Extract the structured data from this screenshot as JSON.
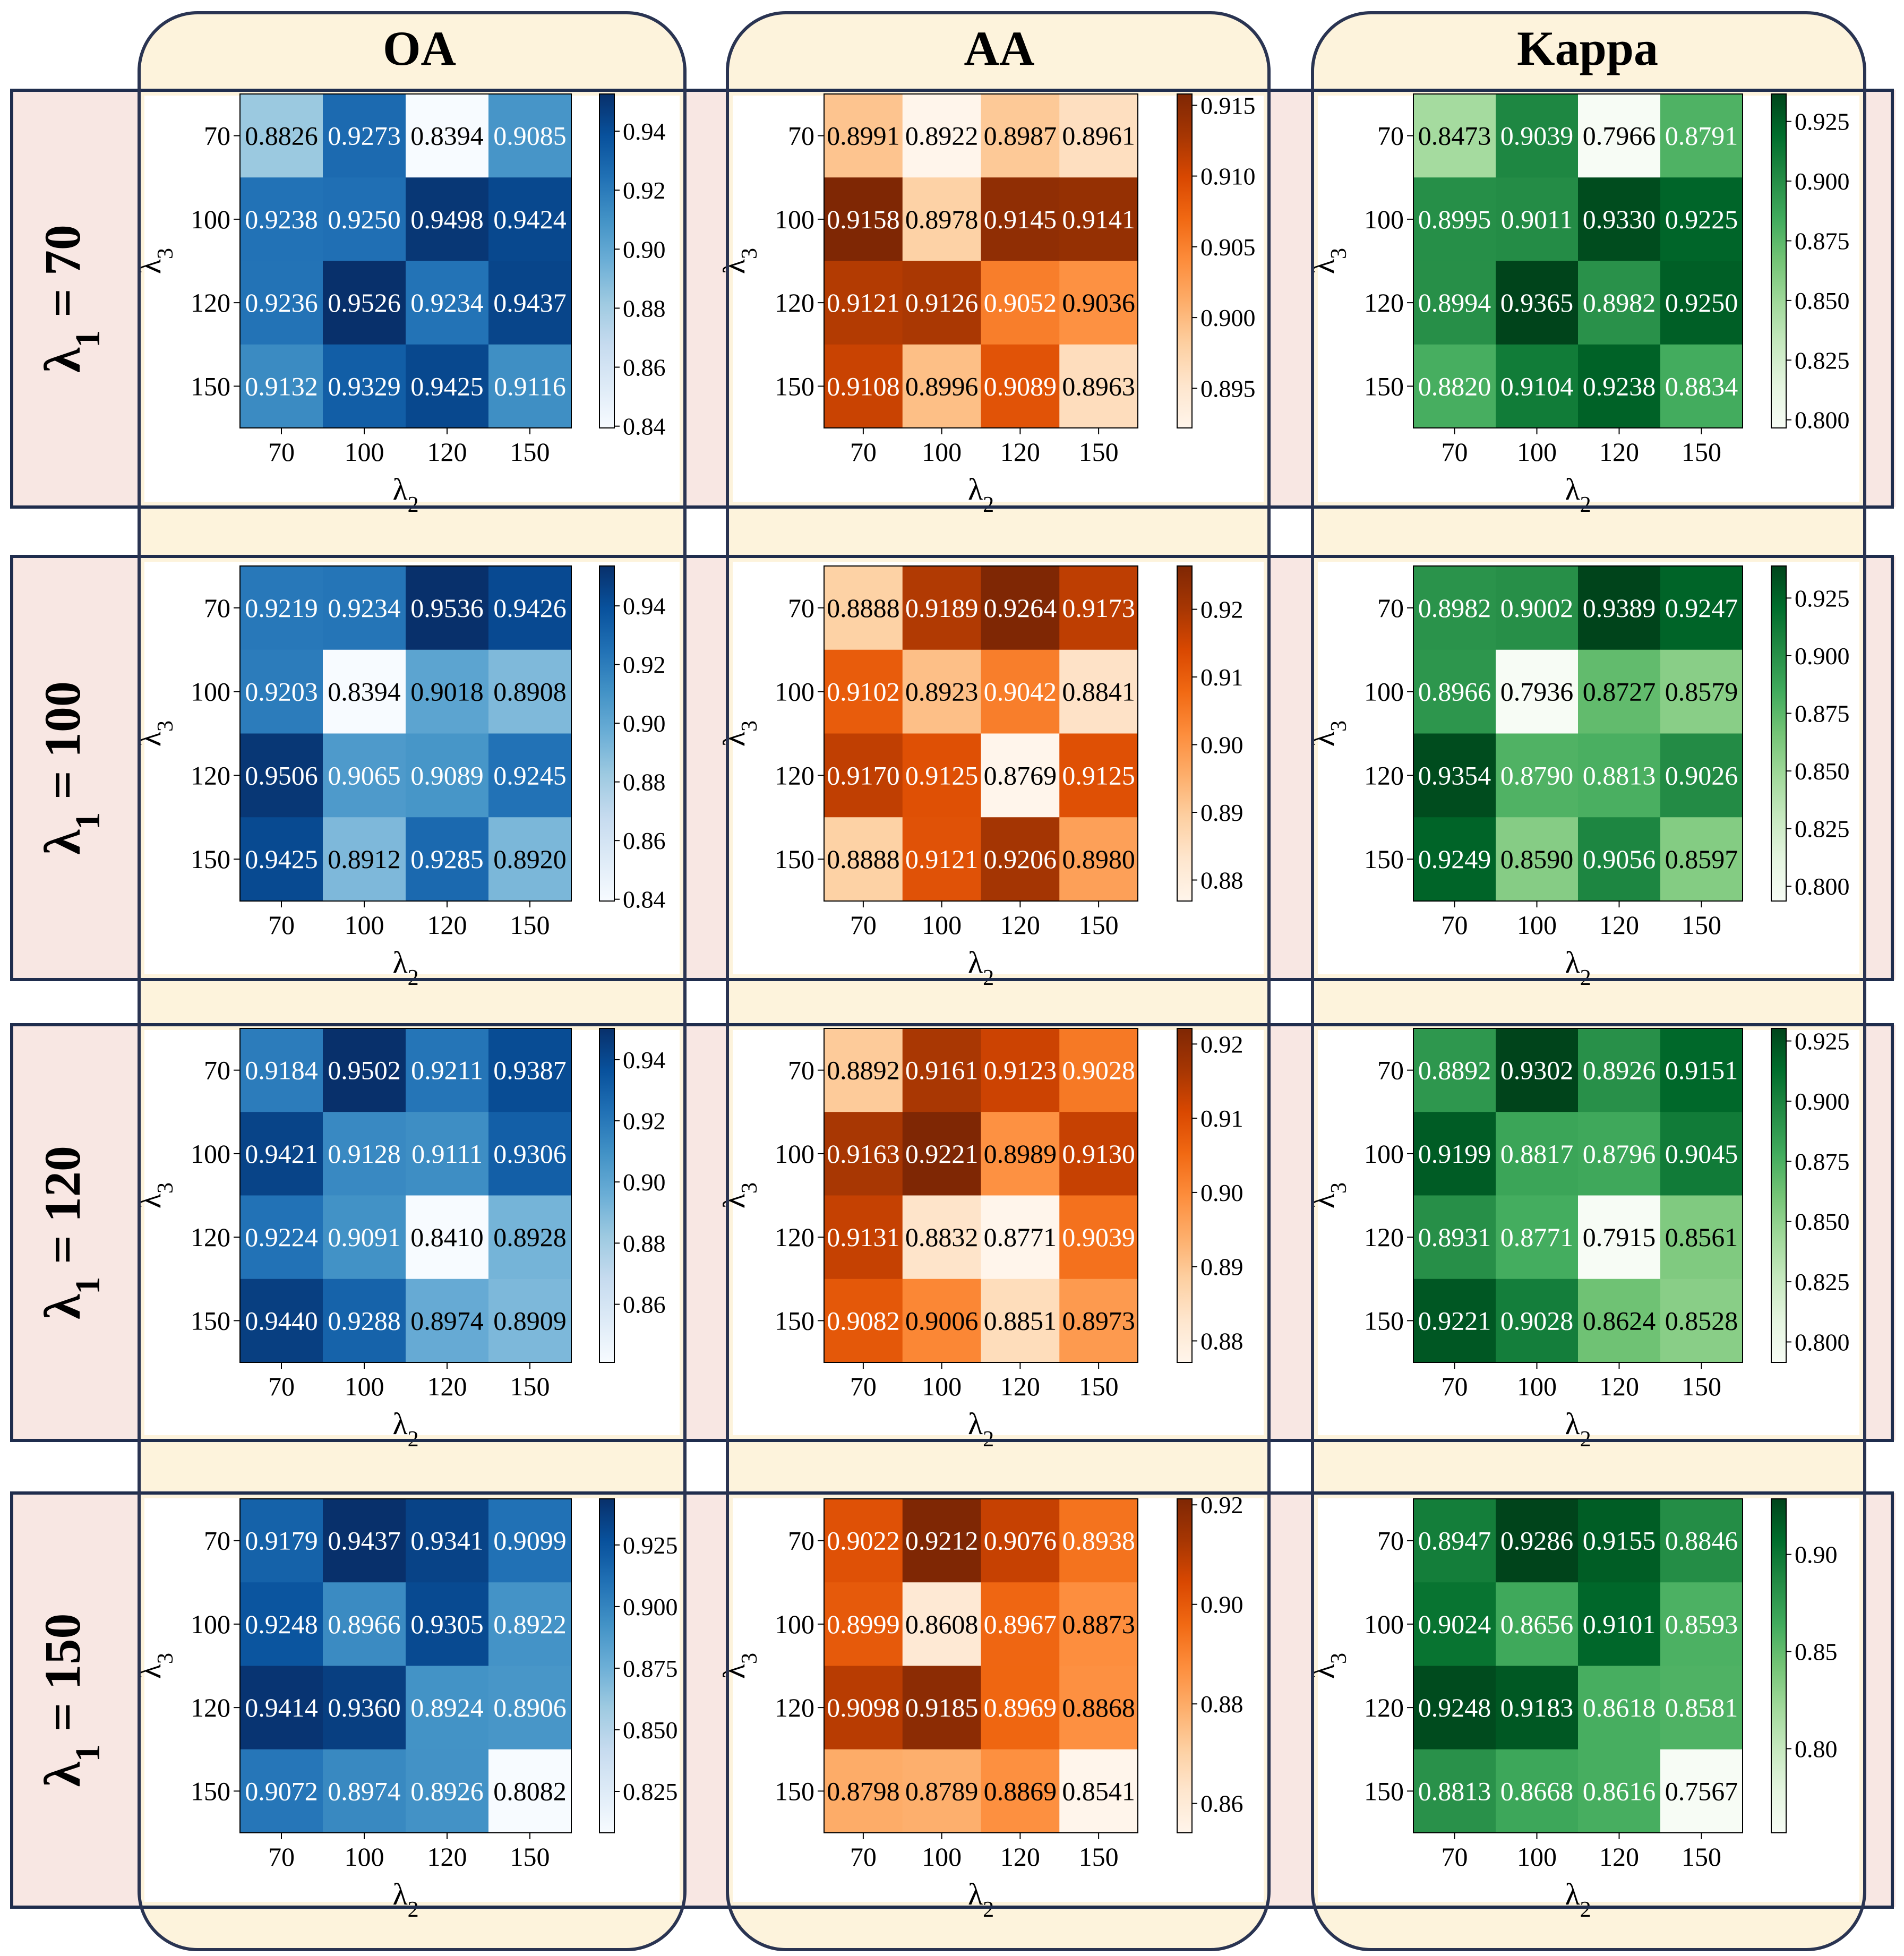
{
  "columns": [
    "OA",
    "AA",
    "Kappa"
  ],
  "rows": [
    "λ1 = 70",
    "λ1 = 100",
    "λ1 = 120",
    "λ1 = 150"
  ],
  "row_lambda_values": [
    "70",
    "100",
    "120",
    "150"
  ],
  "lambda_symbol": "λ",
  "row_label_sub": "1",
  "row_label_eq": " = ",
  "x_axis_label": "λ2",
  "y_axis_label": "λ3",
  "colormaps": {
    "OA": {
      "name": "Blues",
      "low": "#f7fbff",
      "high": "#08306b"
    },
    "AA": {
      "name": "Oranges",
      "low": "#fff5eb",
      "high": "#7f2704"
    },
    "Kappa": {
      "name": "Greens",
      "low": "#f7fcf5",
      "high": "#00441b"
    }
  },
  "chart_data": [
    {
      "type": "heatmap",
      "metric": "OA",
      "lambda1": 70,
      "xlabel": "λ2",
      "ylabel": "λ3",
      "x_ticks": [
        "70",
        "100",
        "120",
        "150"
      ],
      "y_ticks": [
        "70",
        "100",
        "120",
        "150"
      ],
      "values": [
        [
          0.8826,
          0.9273,
          0.8394,
          0.9085
        ],
        [
          0.9238,
          0.925,
          0.9498,
          0.9424
        ],
        [
          0.9236,
          0.9526,
          0.9234,
          0.9437
        ],
        [
          0.9132,
          0.9329,
          0.9425,
          0.9116
        ]
      ],
      "colorbar_ticks": [
        "0.84",
        "0.86",
        "0.88",
        "0.90",
        "0.92",
        "0.94"
      ],
      "colorbar_range": [
        0.8394,
        0.9526
      ]
    },
    {
      "type": "heatmap",
      "metric": "AA",
      "lambda1": 70,
      "xlabel": "λ2",
      "ylabel": "λ3",
      "x_ticks": [
        "70",
        "100",
        "120",
        "150"
      ],
      "y_ticks": [
        "70",
        "100",
        "120",
        "150"
      ],
      "values": [
        [
          0.8991,
          0.8922,
          0.8987,
          0.8961
        ],
        [
          0.9158,
          0.8978,
          0.9145,
          0.9141
        ],
        [
          0.9121,
          0.9126,
          0.9052,
          0.9036
        ],
        [
          0.9108,
          0.8996,
          0.9089,
          0.8963
        ]
      ],
      "colorbar_ticks": [
        "0.895",
        "0.900",
        "0.905",
        "0.910",
        "0.915"
      ],
      "colorbar_range": [
        0.8922,
        0.9158
      ]
    },
    {
      "type": "heatmap",
      "metric": "Kappa",
      "lambda1": 70,
      "xlabel": "λ2",
      "ylabel": "λ3",
      "x_ticks": [
        "70",
        "100",
        "120",
        "150"
      ],
      "y_ticks": [
        "70",
        "100",
        "120",
        "150"
      ],
      "values": [
        [
          0.8473,
          0.9039,
          0.7966,
          0.8791
        ],
        [
          0.8995,
          0.9011,
          0.933,
          0.9225
        ],
        [
          0.8994,
          0.9365,
          0.8982,
          0.925
        ],
        [
          0.882,
          0.9104,
          0.9238,
          0.8834
        ]
      ],
      "colorbar_ticks": [
        "0.800",
        "0.825",
        "0.850",
        "0.875",
        "0.900",
        "0.925"
      ],
      "colorbar_range": [
        0.7966,
        0.9365
      ]
    },
    {
      "type": "heatmap",
      "metric": "OA",
      "lambda1": 100,
      "xlabel": "λ2",
      "ylabel": "λ3",
      "x_ticks": [
        "70",
        "100",
        "120",
        "150"
      ],
      "y_ticks": [
        "70",
        "100",
        "120",
        "150"
      ],
      "values": [
        [
          0.9219,
          0.9234,
          0.9536,
          0.9426
        ],
        [
          0.9203,
          0.8394,
          0.9018,
          0.8908
        ],
        [
          0.9506,
          0.9065,
          0.9089,
          0.9245
        ],
        [
          0.9425,
          0.8912,
          0.9285,
          0.892
        ]
      ],
      "colorbar_ticks": [
        "0.84",
        "0.86",
        "0.88",
        "0.90",
        "0.92",
        "0.94"
      ],
      "colorbar_range": [
        0.8394,
        0.9536
      ]
    },
    {
      "type": "heatmap",
      "metric": "AA",
      "lambda1": 100,
      "xlabel": "λ2",
      "ylabel": "λ3",
      "x_ticks": [
        "70",
        "100",
        "120",
        "150"
      ],
      "y_ticks": [
        "70",
        "100",
        "120",
        "150"
      ],
      "values": [
        [
          0.8888,
          0.9189,
          0.9264,
          0.9173
        ],
        [
          0.9102,
          0.8923,
          0.9042,
          0.8841
        ],
        [
          0.917,
          0.9125,
          0.8769,
          0.9125
        ],
        [
          0.8888,
          0.9121,
          0.9206,
          0.898
        ]
      ],
      "colorbar_ticks": [
        "0.88",
        "0.89",
        "0.90",
        "0.91",
        "0.92"
      ],
      "colorbar_range": [
        0.8769,
        0.9264
      ]
    },
    {
      "type": "heatmap",
      "metric": "Kappa",
      "lambda1": 100,
      "xlabel": "λ2",
      "ylabel": "λ3",
      "x_ticks": [
        "70",
        "100",
        "120",
        "150"
      ],
      "y_ticks": [
        "70",
        "100",
        "120",
        "150"
      ],
      "values": [
        [
          0.8982,
          0.9002,
          0.9389,
          0.9247
        ],
        [
          0.8966,
          0.7936,
          0.8727,
          0.8579
        ],
        [
          0.9354,
          0.879,
          0.8813,
          0.9026
        ],
        [
          0.9249,
          0.859,
          0.9056,
          0.8597
        ]
      ],
      "colorbar_ticks": [
        "0.800",
        "0.825",
        "0.850",
        "0.875",
        "0.900",
        "0.925"
      ],
      "colorbar_range": [
        0.7936,
        0.9389
      ]
    },
    {
      "type": "heatmap",
      "metric": "OA",
      "lambda1": 120,
      "xlabel": "λ2",
      "ylabel": "λ3",
      "x_ticks": [
        "70",
        "100",
        "120",
        "150"
      ],
      "y_ticks": [
        "70",
        "100",
        "120",
        "150"
      ],
      "values": [
        [
          0.9184,
          0.9502,
          0.9211,
          0.9387
        ],
        [
          0.9421,
          0.9128,
          0.9111,
          0.9306
        ],
        [
          0.9224,
          0.9091,
          0.841,
          0.8928
        ],
        [
          0.944,
          0.9288,
          0.8974,
          0.8909
        ]
      ],
      "colorbar_ticks": [
        "0.86",
        "0.88",
        "0.90",
        "0.92",
        "0.94"
      ],
      "colorbar_range": [
        0.841,
        0.9502
      ]
    },
    {
      "type": "heatmap",
      "metric": "AA",
      "lambda1": 120,
      "xlabel": "λ2",
      "ylabel": "λ3",
      "x_ticks": [
        "70",
        "100",
        "120",
        "150"
      ],
      "y_ticks": [
        "70",
        "100",
        "120",
        "150"
      ],
      "values": [
        [
          0.8892,
          0.9161,
          0.9123,
          0.9028
        ],
        [
          0.9163,
          0.9221,
          0.8989,
          0.913
        ],
        [
          0.9131,
          0.8832,
          0.8771,
          0.9039
        ],
        [
          0.9082,
          0.9006,
          0.8851,
          0.8973
        ]
      ],
      "colorbar_ticks": [
        "0.88",
        "0.89",
        "0.90",
        "0.91",
        "0.92"
      ],
      "colorbar_range": [
        0.8771,
        0.9221
      ]
    },
    {
      "type": "heatmap",
      "metric": "Kappa",
      "lambda1": 120,
      "xlabel": "λ2",
      "ylabel": "λ3",
      "x_ticks": [
        "70",
        "100",
        "120",
        "150"
      ],
      "y_ticks": [
        "70",
        "100",
        "120",
        "150"
      ],
      "values": [
        [
          0.8892,
          0.9302,
          0.8926,
          0.9151
        ],
        [
          0.9199,
          0.8817,
          0.8796,
          0.9045
        ],
        [
          0.8931,
          0.8771,
          0.7915,
          0.8561
        ],
        [
          0.9221,
          0.9028,
          0.8624,
          0.8528
        ]
      ],
      "colorbar_ticks": [
        "0.800",
        "0.825",
        "0.850",
        "0.875",
        "0.900",
        "0.925"
      ],
      "colorbar_range": [
        0.7915,
        0.9302
      ]
    },
    {
      "type": "heatmap",
      "metric": "OA",
      "lambda1": 150,
      "xlabel": "λ2",
      "ylabel": "λ3",
      "x_ticks": [
        "70",
        "100",
        "120",
        "150"
      ],
      "y_ticks": [
        "70",
        "100",
        "120",
        "150"
      ],
      "values": [
        [
          0.9179,
          0.9437,
          0.9341,
          0.9099
        ],
        [
          0.9248,
          0.8966,
          0.9305,
          0.8922
        ],
        [
          0.9414,
          0.936,
          0.8924,
          0.8906
        ],
        [
          0.9072,
          0.8974,
          0.8926,
          0.8082
        ]
      ],
      "colorbar_ticks": [
        "0.825",
        "0.850",
        "0.875",
        "0.900",
        "0.925"
      ],
      "colorbar_range": [
        0.8082,
        0.9437
      ]
    },
    {
      "type": "heatmap",
      "metric": "AA",
      "lambda1": 150,
      "xlabel": "λ2",
      "ylabel": "λ3",
      "x_ticks": [
        "70",
        "100",
        "120",
        "150"
      ],
      "y_ticks": [
        "70",
        "100",
        "120",
        "150"
      ],
      "values": [
        [
          0.9022,
          0.9212,
          0.9076,
          0.8938
        ],
        [
          0.8999,
          0.8608,
          0.8967,
          0.8873
        ],
        [
          0.9098,
          0.9185,
          0.8969,
          0.8868
        ],
        [
          0.8798,
          0.8789,
          0.8869,
          0.8541
        ]
      ],
      "colorbar_ticks": [
        "0.86",
        "0.88",
        "0.90",
        "0.92"
      ],
      "colorbar_range": [
        0.8541,
        0.9212
      ]
    },
    {
      "type": "heatmap",
      "metric": "Kappa",
      "lambda1": 150,
      "xlabel": "λ2",
      "ylabel": "λ3",
      "x_ticks": [
        "70",
        "100",
        "120",
        "150"
      ],
      "y_ticks": [
        "70",
        "100",
        "120",
        "150"
      ],
      "values": [
        [
          0.8947,
          0.9286,
          0.9155,
          0.8846
        ],
        [
          0.9024,
          0.8656,
          0.9101,
          0.8593
        ],
        [
          0.9248,
          0.9183,
          0.8618,
          0.8581
        ],
        [
          0.8813,
          0.8668,
          0.8616,
          0.7567
        ]
      ],
      "colorbar_ticks": [
        "0.80",
        "0.85",
        "0.90"
      ],
      "colorbar_range": [
        0.7567,
        0.9286
      ]
    }
  ]
}
